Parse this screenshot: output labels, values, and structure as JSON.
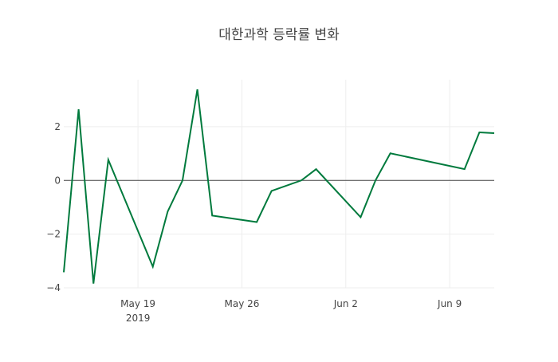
{
  "chart_data": {
    "type": "line",
    "title": "대한과학 등락률 변화",
    "xlabel": "",
    "ylabel": "",
    "x": [
      "2019-05-14",
      "2019-05-15",
      "2019-05-16",
      "2019-05-17",
      "2019-05-20",
      "2019-05-21",
      "2019-05-22",
      "2019-05-23",
      "2019-05-24",
      "2019-05-27",
      "2019-05-28",
      "2019-05-30",
      "2019-05-31",
      "2019-06-03",
      "2019-06-04",
      "2019-06-05",
      "2019-06-10",
      "2019-06-11",
      "2019-06-12"
    ],
    "series": [
      {
        "name": "등락률",
        "color": "#007a3d",
        "values": [
          -3.42,
          2.65,
          -3.84,
          0.77,
          -3.21,
          -1.16,
          0.0,
          3.39,
          -1.31,
          -1.55,
          -0.39,
          0.0,
          0.42,
          -1.37,
          0.0,
          1.01,
          0.42,
          1.79,
          1.76
        ]
      }
    ],
    "xlim": [
      "2019-05-14",
      "2019-06-12"
    ],
    "ylim": [
      -4.0,
      3.75
    ],
    "x_ticks": [
      {
        "date": "2019-05-19",
        "label": "May 19",
        "sublabel": "2019"
      },
      {
        "date": "2019-05-26",
        "label": "May 26"
      },
      {
        "date": "2019-06-02",
        "label": "Jun 2"
      },
      {
        "date": "2019-06-09",
        "label": "Jun 9"
      }
    ],
    "y_ticks": [
      2,
      0,
      -2,
      -4
    ],
    "y_tick_labels": [
      "2",
      "0",
      "−2",
      "−4"
    ],
    "grid": true,
    "zeroline": true
  }
}
